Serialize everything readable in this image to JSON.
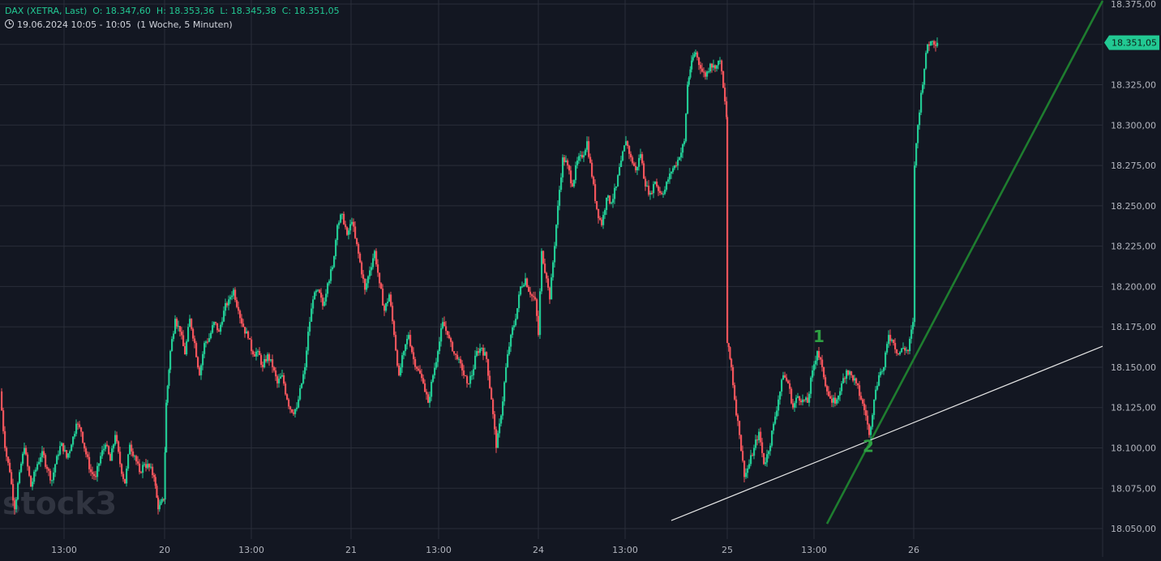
{
  "legend": {
    "symbol": "DAX (XETRA, Last)",
    "o_label": "O:",
    "o_value": "18.347,60",
    "h_label": "H:",
    "h_value": "18.353,36",
    "l_label": "L:",
    "l_value": "18.345,38",
    "c_label": "C:",
    "c_value": "18.351,05",
    "period": "19.06.2024 10:05 - 10:05",
    "interval": "(1 Woche, 5 Minuten)"
  },
  "watermark": "stock3",
  "colors": {
    "background": "#131722",
    "grid": "#2a2e39",
    "up": "#22c993",
    "down": "#f2545b",
    "axis_text": "#b2b5be",
    "trend_green": "#1e7d2f",
    "trend_white": "#e6e6e6",
    "marker_green": "#2ea043"
  },
  "chart_data": {
    "type": "candlestick",
    "x_tick_labels": [
      "13:00",
      "20",
      "13:00",
      "21",
      "13:00",
      "24",
      "13:00",
      "25",
      "13:00",
      "26"
    ],
    "y_tick_labels": [
      "18.375,00",
      "18.350,00",
      "18.325,00",
      "18.300,00",
      "18.275,00",
      "18.250,00",
      "18.225,00",
      "18.200,00",
      "18.175,00",
      "18.150,00",
      "18.125,00",
      "18.100,00",
      "18.075,00",
      "18.050,00"
    ],
    "y_ticks": [
      18375,
      18350,
      18325,
      18300,
      18275,
      18250,
      18225,
      18200,
      18175,
      18150,
      18125,
      18100,
      18075,
      18050
    ],
    "ylim": [
      18043.5,
      18377.5
    ],
    "last_price": 18351.05,
    "last_price_label": "18.351,05",
    "close_path": [
      {
        "x": 0,
        "y": 18135
      },
      {
        "x": 6,
        "y": 18100
      },
      {
        "x": 12,
        "y": 18085
      },
      {
        "x": 18,
        "y": 18062
      },
      {
        "x": 24,
        "y": 18085
      },
      {
        "x": 30,
        "y": 18100
      },
      {
        "x": 38,
        "y": 18076
      },
      {
        "x": 46,
        "y": 18090
      },
      {
        "x": 52,
        "y": 18098
      },
      {
        "x": 58,
        "y": 18087
      },
      {
        "x": 64,
        "y": 18080
      },
      {
        "x": 70,
        "y": 18095
      },
      {
        "x": 76,
        "y": 18103
      },
      {
        "x": 82,
        "y": 18094
      },
      {
        "x": 88,
        "y": 18102
      },
      {
        "x": 94,
        "y": 18115
      },
      {
        "x": 100,
        "y": 18110
      },
      {
        "x": 106,
        "y": 18096
      },
      {
        "x": 112,
        "y": 18085
      },
      {
        "x": 118,
        "y": 18082
      },
      {
        "x": 124,
        "y": 18095
      },
      {
        "x": 130,
        "y": 18102
      },
      {
        "x": 136,
        "y": 18092
      },
      {
        "x": 142,
        "y": 18108
      },
      {
        "x": 148,
        "y": 18090
      },
      {
        "x": 154,
        "y": 18078
      },
      {
        "x": 160,
        "y": 18102
      },
      {
        "x": 166,
        "y": 18095
      },
      {
        "x": 172,
        "y": 18085
      },
      {
        "x": 178,
        "y": 18090
      },
      {
        "x": 184,
        "y": 18088
      },
      {
        "x": 190,
        "y": 18082
      },
      {
        "x": 195,
        "y": 18062
      },
      {
        "x": 202,
        "y": 18068
      },
      {
        "x": 205,
        "y": 18128
      },
      {
        "x": 210,
        "y": 18160
      },
      {
        "x": 216,
        "y": 18180
      },
      {
        "x": 222,
        "y": 18172
      },
      {
        "x": 228,
        "y": 18158
      },
      {
        "x": 234,
        "y": 18180
      },
      {
        "x": 240,
        "y": 18165
      },
      {
        "x": 246,
        "y": 18145
      },
      {
        "x": 252,
        "y": 18165
      },
      {
        "x": 258,
        "y": 18168
      },
      {
        "x": 264,
        "y": 18178
      },
      {
        "x": 270,
        "y": 18172
      },
      {
        "x": 276,
        "y": 18185
      },
      {
        "x": 282,
        "y": 18192
      },
      {
        "x": 288,
        "y": 18198
      },
      {
        "x": 294,
        "y": 18185
      },
      {
        "x": 300,
        "y": 18175
      },
      {
        "x": 306,
        "y": 18168
      },
      {
        "x": 312,
        "y": 18158
      },
      {
        "x": 318,
        "y": 18160
      },
      {
        "x": 324,
        "y": 18150
      },
      {
        "x": 330,
        "y": 18158
      },
      {
        "x": 336,
        "y": 18150
      },
      {
        "x": 342,
        "y": 18140
      },
      {
        "x": 348,
        "y": 18145
      },
      {
        "x": 354,
        "y": 18130
      },
      {
        "x": 360,
        "y": 18122
      },
      {
        "x": 366,
        "y": 18125
      },
      {
        "x": 372,
        "y": 18140
      },
      {
        "x": 376,
        "y": 18150
      },
      {
        "x": 380,
        "y": 18172
      },
      {
        "x": 386,
        "y": 18192
      },
      {
        "x": 392,
        "y": 18198
      },
      {
        "x": 398,
        "y": 18188
      },
      {
        "x": 404,
        "y": 18202
      },
      {
        "x": 410,
        "y": 18212
      },
      {
        "x": 416,
        "y": 18238
      },
      {
        "x": 422,
        "y": 18245
      },
      {
        "x": 428,
        "y": 18232
      },
      {
        "x": 434,
        "y": 18240
      },
      {
        "x": 438,
        "y": 18230
      },
      {
        "x": 444,
        "y": 18215
      },
      {
        "x": 450,
        "y": 18198
      },
      {
        "x": 456,
        "y": 18210
      },
      {
        "x": 462,
        "y": 18222
      },
      {
        "x": 468,
        "y": 18202
      },
      {
        "x": 474,
        "y": 18185
      },
      {
        "x": 480,
        "y": 18195
      },
      {
        "x": 486,
        "y": 18170
      },
      {
        "x": 492,
        "y": 18145
      },
      {
        "x": 498,
        "y": 18160
      },
      {
        "x": 504,
        "y": 18170
      },
      {
        "x": 510,
        "y": 18155
      },
      {
        "x": 516,
        "y": 18148
      },
      {
        "x": 522,
        "y": 18140
      },
      {
        "x": 528,
        "y": 18128
      },
      {
        "x": 534,
        "y": 18145
      },
      {
        "x": 540,
        "y": 18160
      },
      {
        "x": 546,
        "y": 18178
      },
      {
        "x": 552,
        "y": 18170
      },
      {
        "x": 558,
        "y": 18160
      },
      {
        "x": 564,
        "y": 18155
      },
      {
        "x": 570,
        "y": 18148
      },
      {
        "x": 576,
        "y": 18140
      },
      {
        "x": 582,
        "y": 18145
      },
      {
        "x": 588,
        "y": 18160
      },
      {
        "x": 594,
        "y": 18162
      },
      {
        "x": 600,
        "y": 18155
      },
      {
        "x": 606,
        "y": 18130
      },
      {
        "x": 612,
        "y": 18100
      },
      {
        "x": 618,
        "y": 18120
      },
      {
        "x": 624,
        "y": 18150
      },
      {
        "x": 630,
        "y": 18170
      },
      {
        "x": 636,
        "y": 18180
      },
      {
        "x": 642,
        "y": 18200
      },
      {
        "x": 648,
        "y": 18205
      },
      {
        "x": 654,
        "y": 18195
      },
      {
        "x": 660,
        "y": 18192
      },
      {
        "x": 664,
        "y": 18170
      },
      {
        "x": 668,
        "y": 18222
      },
      {
        "x": 674,
        "y": 18205
      },
      {
        "x": 678,
        "y": 18192
      },
      {
        "x": 682,
        "y": 18215
      },
      {
        "x": 688,
        "y": 18250
      },
      {
        "x": 694,
        "y": 18280
      },
      {
        "x": 700,
        "y": 18275
      },
      {
        "x": 706,
        "y": 18262
      },
      {
        "x": 712,
        "y": 18278
      },
      {
        "x": 718,
        "y": 18280
      },
      {
        "x": 724,
        "y": 18290
      },
      {
        "x": 730,
        "y": 18268
      },
      {
        "x": 736,
        "y": 18248
      },
      {
        "x": 742,
        "y": 18238
      },
      {
        "x": 748,
        "y": 18255
      },
      {
        "x": 754,
        "y": 18252
      },
      {
        "x": 760,
        "y": 18262
      },
      {
        "x": 766,
        "y": 18278
      },
      {
        "x": 772,
        "y": 18290
      },
      {
        "x": 778,
        "y": 18280
      },
      {
        "x": 784,
        "y": 18272
      },
      {
        "x": 790,
        "y": 18282
      },
      {
        "x": 796,
        "y": 18262
      },
      {
        "x": 802,
        "y": 18258
      },
      {
        "x": 808,
        "y": 18265
      },
      {
        "x": 814,
        "y": 18258
      },
      {
        "x": 820,
        "y": 18260
      },
      {
        "x": 826,
        "y": 18270
      },
      {
        "x": 832,
        "y": 18275
      },
      {
        "x": 838,
        "y": 18280
      },
      {
        "x": 844,
        "y": 18290
      },
      {
        "x": 848,
        "y": 18325
      },
      {
        "x": 853,
        "y": 18340
      },
      {
        "x": 858,
        "y": 18345
      },
      {
        "x": 864,
        "y": 18335
      },
      {
        "x": 870,
        "y": 18330
      },
      {
        "x": 876,
        "y": 18338
      },
      {
        "x": 882,
        "y": 18335
      },
      {
        "x": 888,
        "y": 18340
      },
      {
        "x": 896,
        "y": 18305
      },
      {
        "x": 897,
        "y": 18165
      },
      {
        "x": 902,
        "y": 18150
      },
      {
        "x": 906,
        "y": 18130
      },
      {
        "x": 912,
        "y": 18108
      },
      {
        "x": 918,
        "y": 18082
      },
      {
        "x": 924,
        "y": 18090
      },
      {
        "x": 930,
        "y": 18100
      },
      {
        "x": 936,
        "y": 18110
      },
      {
        "x": 942,
        "y": 18090
      },
      {
        "x": 948,
        "y": 18098
      },
      {
        "x": 954,
        "y": 18115
      },
      {
        "x": 960,
        "y": 18130
      },
      {
        "x": 966,
        "y": 18145
      },
      {
        "x": 972,
        "y": 18140
      },
      {
        "x": 978,
        "y": 18125
      },
      {
        "x": 984,
        "y": 18132
      },
      {
        "x": 990,
        "y": 18130
      },
      {
        "x": 996,
        "y": 18128
      },
      {
        "x": 1002,
        "y": 18148
      },
      {
        "x": 1008,
        "y": 18160
      },
      {
        "x": 1014,
        "y": 18150
      },
      {
        "x": 1020,
        "y": 18135
      },
      {
        "x": 1026,
        "y": 18128
      },
      {
        "x": 1032,
        "y": 18130
      },
      {
        "x": 1038,
        "y": 18140
      },
      {
        "x": 1044,
        "y": 18148
      },
      {
        "x": 1050,
        "y": 18145
      },
      {
        "x": 1056,
        "y": 18140
      },
      {
        "x": 1062,
        "y": 18130
      },
      {
        "x": 1068,
        "y": 18120
      },
      {
        "x": 1072,
        "y": 18108
      },
      {
        "x": 1078,
        "y": 18130
      },
      {
        "x": 1084,
        "y": 18145
      },
      {
        "x": 1090,
        "y": 18150
      },
      {
        "x": 1096,
        "y": 18170
      },
      {
        "x": 1102,
        "y": 18165
      },
      {
        "x": 1108,
        "y": 18158
      },
      {
        "x": 1114,
        "y": 18162
      },
      {
        "x": 1120,
        "y": 18160
      },
      {
        "x": 1126,
        "y": 18178
      },
      {
        "x": 1128,
        "y": 18275
      },
      {
        "x": 1132,
        "y": 18300
      },
      {
        "x": 1136,
        "y": 18320
      },
      {
        "x": 1140,
        "y": 18335
      },
      {
        "x": 1144,
        "y": 18350
      },
      {
        "x": 1150,
        "y": 18352
      },
      {
        "x": 1156,
        "y": 18351
      }
    ],
    "annotations": [
      {
        "label": "1",
        "x": 1010,
        "y": 18169
      },
      {
        "label": "2",
        "x": 1071,
        "y": 18101
      }
    ],
    "trendlines": [
      {
        "name": "green",
        "x1": 1020,
        "y1": 18053,
        "x2": 1360,
        "y2": 18377
      },
      {
        "name": "white",
        "x1": 828,
        "y1": 18055,
        "x2": 1360,
        "y2": 18163
      }
    ]
  }
}
